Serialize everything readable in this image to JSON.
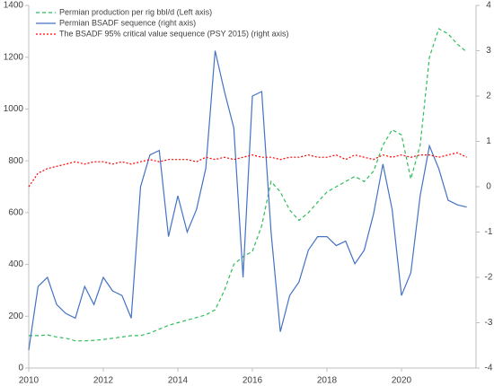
{
  "chart_data": {
    "type": "line",
    "x": [
      2010.0,
      2010.25,
      2010.5,
      2010.75,
      2011.0,
      2011.25,
      2011.5,
      2011.75,
      2012.0,
      2012.25,
      2012.5,
      2012.75,
      2013.0,
      2013.25,
      2013.5,
      2013.75,
      2014.0,
      2014.25,
      2014.5,
      2014.75,
      2015.0,
      2015.25,
      2015.5,
      2015.75,
      2016.0,
      2016.25,
      2016.5,
      2016.75,
      2017.0,
      2017.25,
      2017.5,
      2017.75,
      2018.0,
      2018.25,
      2018.5,
      2018.75,
      2019.0,
      2019.25,
      2019.5,
      2019.75,
      2020.0,
      2020.25,
      2020.5,
      2020.75,
      2021.0,
      2021.25,
      2021.5,
      2021.75
    ],
    "series": [
      {
        "name": "Permian production per rig bbl/d (Left axis)",
        "color": "#2ebd59",
        "dash": "4,3",
        "values": [
          125,
          125,
          128,
          120,
          115,
          105,
          105,
          107,
          110,
          115,
          120,
          125,
          125,
          135,
          150,
          165,
          175,
          185,
          195,
          205,
          225,
          300,
          400,
          430,
          450,
          550,
          720,
          680,
          610,
          570,
          600,
          640,
          680,
          700,
          720,
          740,
          720,
          760,
          860,
          920,
          900,
          730,
          860,
          1200,
          1310,
          1290,
          1250,
          1220
        ]
      },
      {
        "name": "Permian BSADF sequence (right axis)",
        "color": "#4472c4",
        "dash": "",
        "axis": "y2",
        "values": [
          -3.6,
          -2.2,
          -2.0,
          -2.6,
          -2.8,
          -2.9,
          -2.2,
          -2.6,
          -2.0,
          -2.3,
          -2.4,
          -2.9,
          0.0,
          0.7,
          0.8,
          -1.1,
          -0.2,
          -1.0,
          -0.5,
          0.4,
          3.0,
          2.1,
          1.3,
          -2.0,
          2.0,
          2.1,
          -1.0,
          -3.2,
          -2.4,
          -2.1,
          -1.4,
          -1.1,
          -1.1,
          -1.3,
          -1.2,
          -1.7,
          -1.4,
          -0.6,
          0.5,
          -0.5,
          -2.4,
          -1.9,
          -0.2,
          0.9,
          0.4,
          -0.3,
          -0.4,
          -0.45
        ]
      },
      {
        "name": "The BSADF 95% critical value sequence (PSY 2015)  (right axis)",
        "color": "#ff0000",
        "dash": "2,2",
        "axis": "y2",
        "values": [
          0.0,
          0.3,
          0.4,
          0.45,
          0.5,
          0.55,
          0.5,
          0.55,
          0.55,
          0.5,
          0.55,
          0.5,
          0.55,
          0.6,
          0.55,
          0.6,
          0.6,
          0.6,
          0.55,
          0.65,
          0.6,
          0.65,
          0.6,
          0.65,
          0.7,
          0.65,
          0.65,
          0.6,
          0.65,
          0.65,
          0.7,
          0.65,
          0.65,
          0.7,
          0.6,
          0.7,
          0.65,
          0.6,
          0.7,
          0.65,
          0.7,
          0.65,
          0.7,
          0.7,
          0.65,
          0.7,
          0.75,
          0.65
        ]
      }
    ],
    "xlim": [
      2010,
      2022
    ],
    "xticks": [
      2010,
      2012,
      2014,
      2016,
      2018,
      2020
    ],
    "ylim": [
      0,
      1400
    ],
    "yticks": [
      0,
      200,
      400,
      600,
      800,
      1000,
      1200,
      1400
    ],
    "y2lim": [
      -4,
      4
    ],
    "y2ticks": [
      -4,
      -3,
      -2,
      -1,
      0,
      1,
      2,
      3,
      4
    ],
    "legend": "upper-left"
  }
}
